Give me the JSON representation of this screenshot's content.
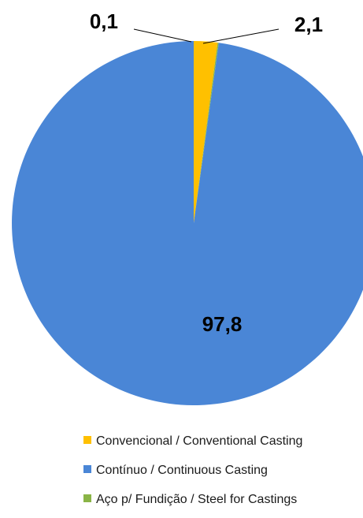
{
  "chart_data": {
    "type": "pie",
    "categories": [
      "Convencional / Conventional Casting",
      "Contínuo / Continuous Casting",
      "Aço p/ Fundição / Steel for Castings"
    ],
    "values": [
      2.1,
      97.8,
      0.1
    ],
    "data_labels": [
      "2,1",
      "97,8",
      "0,1"
    ],
    "colors": [
      "#ffc000",
      "#4a86d6",
      "#8ab446"
    ],
    "start_angle_deg": 0,
    "direction": "clockwise",
    "legend_position": "bottom",
    "title": ""
  }
}
